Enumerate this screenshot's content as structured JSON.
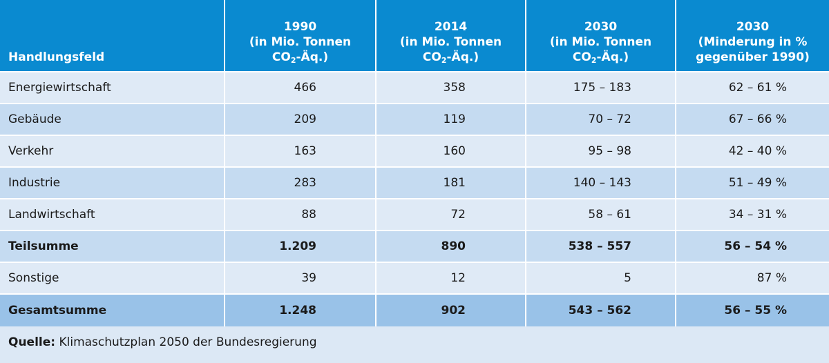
{
  "chart_data": {
    "type": "table",
    "columns": [
      {
        "label": "Handlungsfeld"
      },
      {
        "lines": [
          "1990",
          "(in Mio. Tonnen"
        ],
        "co2": "CO",
        "co2_sub": "2",
        "co2_tail": "-Äq.)"
      },
      {
        "lines": [
          "2014",
          "(in Mio. Tonnen"
        ],
        "co2": "CO",
        "co2_sub": "2",
        "co2_tail": "-Äq.)"
      },
      {
        "lines": [
          "2030",
          "(in Mio. Tonnen"
        ],
        "co2": "CO",
        "co2_sub": "2",
        "co2_tail": "-Äq.)"
      },
      {
        "lines": [
          "2030",
          "(Minderung in %",
          "gegenüber 1990)"
        ]
      }
    ],
    "rows": [
      {
        "cells": [
          "Energiewirtschaft",
          "466",
          "358",
          "175 – 183",
          "62 – 61 %"
        ],
        "style": "normal"
      },
      {
        "cells": [
          "Gebäude",
          "209",
          "119",
          "70 – 72",
          "67 – 66 %"
        ],
        "style": "normal"
      },
      {
        "cells": [
          "Verkehr",
          "163",
          "160",
          "95 – 98",
          "42 – 40 %"
        ],
        "style": "normal"
      },
      {
        "cells": [
          "Industrie",
          "283",
          "181",
          "140 – 143",
          "51 – 49 %"
        ],
        "style": "normal"
      },
      {
        "cells": [
          "Landwirtschaft",
          "88",
          "72",
          "58 – 61",
          "34 – 31 %"
        ],
        "style": "normal"
      },
      {
        "cells": [
          "Teilsumme",
          "1.209",
          "890",
          "538 – 557",
          "56 – 54 %"
        ],
        "style": "bold"
      },
      {
        "cells": [
          "Sonstige",
          "39",
          "12",
          "5",
          "87 %"
        ],
        "style": "normal"
      },
      {
        "cells": [
          "Gesamtsumme",
          "1.248",
          "902",
          "543 – 562",
          "56 – 55 %"
        ],
        "style": "total"
      }
    ],
    "source_label": "Quelle:",
    "source_text": "Klimaschutzplan 2050 der Bundesregierung"
  },
  "colors": {
    "header_bg": "#0a8ad0",
    "row_light": "#dfeaf6",
    "row_dark": "#c5dbf1",
    "row_total": "#99c2e8",
    "page_bg": "#dce8f5"
  }
}
